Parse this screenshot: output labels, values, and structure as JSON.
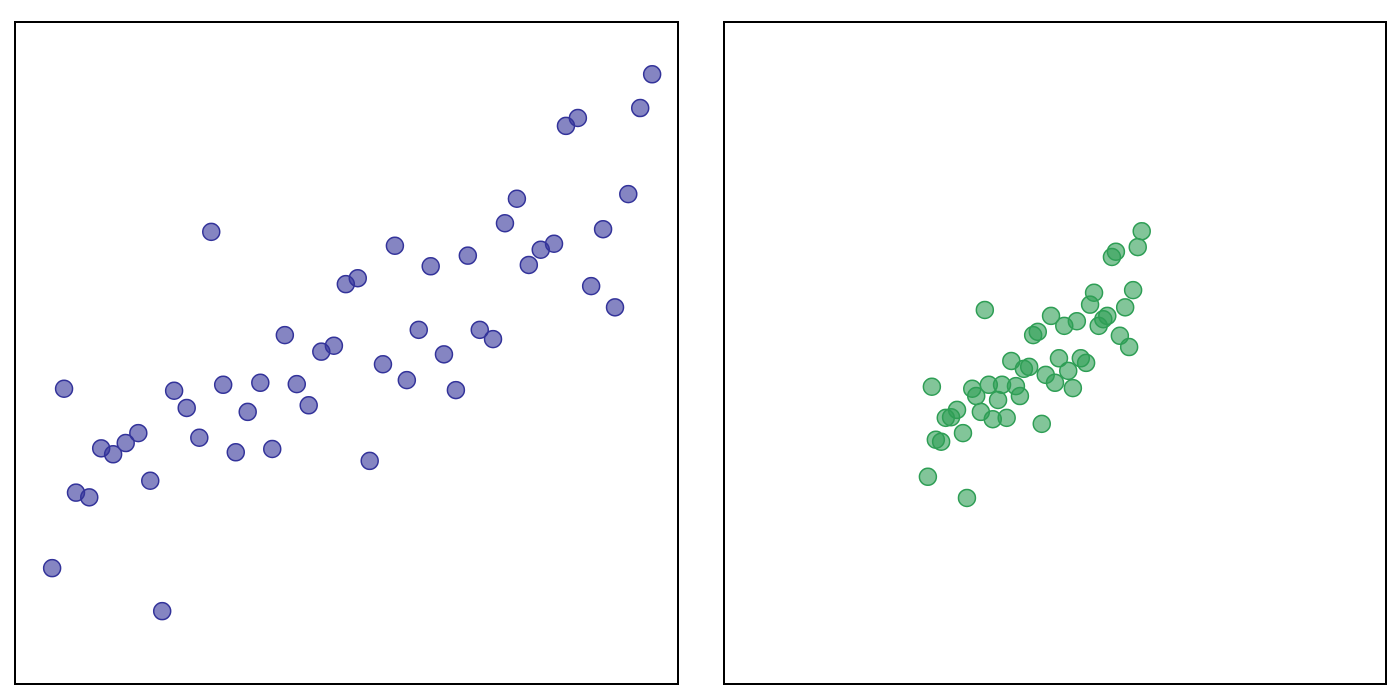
{
  "chart_data": [
    {
      "type": "scatter",
      "color": "#33339a",
      "xlim": [
        0,
        100
      ],
      "ylim": [
        0,
        100
      ],
      "x": [
        5.6,
        7.4,
        9.2,
        11.2,
        13.0,
        14.8,
        16.7,
        18.6,
        20.4,
        22.2,
        24.0,
        25.9,
        27.8,
        29.6,
        31.4,
        33.3,
        35.1,
        37.0,
        38.8,
        40.7,
        42.5,
        44.3,
        46.2,
        48.1,
        49.9,
        51.7,
        53.5,
        55.5,
        57.3,
        59.1,
        60.9,
        62.7,
        64.7,
        66.5,
        68.3,
        70.1,
        72.1,
        73.9,
        75.7,
        77.5,
        79.3,
        81.3,
        83.1,
        84.9,
        86.9,
        88.7,
        90.5,
        92.5,
        94.3,
        96.1
      ],
      "values": [
        17.5,
        44.6,
        28.9,
        28.2,
        35.6,
        34.7,
        36.4,
        37.9,
        30.7,
        11.0,
        44.3,
        41.7,
        37.2,
        68.3,
        45.2,
        35.0,
        41.1,
        45.5,
        35.5,
        52.7,
        45.3,
        42.1,
        50.2,
        51.1,
        60.4,
        61.3,
        33.7,
        48.3,
        66.2,
        45.9,
        53.5,
        63.1,
        49.8,
        44.4,
        64.7,
        53.5,
        52.1,
        69.6,
        73.3,
        63.3,
        65.6,
        66.5,
        84.3,
        85.5,
        60.1,
        68.7,
        56.9,
        74.0,
        87.0,
        92.1
      ]
    },
    {
      "type": "scatter",
      "color": "#2e9e55",
      "xlim": [
        0,
        100
      ],
      "ylim": [
        0,
        100
      ],
      "x": [
        30.8,
        31.4,
        32.0,
        32.8,
        33.5,
        34.3,
        35.2,
        36.1,
        36.7,
        37.5,
        38.1,
        38.8,
        39.4,
        40.0,
        40.6,
        41.4,
        42.0,
        42.7,
        43.4,
        44.1,
        44.7,
        45.3,
        46.1,
        46.7,
        47.4,
        48.0,
        48.6,
        49.4,
        50.0,
        50.6,
        51.4,
        52.0,
        52.7,
        53.3,
        53.9,
        54.7,
        55.3,
        55.9,
        56.6,
        57.3,
        57.9,
        58.6,
        59.2,
        59.8,
        60.6,
        61.2,
        61.8,
        62.5,
        63.1
      ],
      "values": [
        31.3,
        44.9,
        36.9,
        36.6,
        40.2,
        40.3,
        41.4,
        37.9,
        28.1,
        44.6,
        43.5,
        41.1,
        56.5,
        45.2,
        40.0,
        42.9,
        45.2,
        40.2,
        48.8,
        45.0,
        43.5,
        47.6,
        47.9,
        52.7,
        53.2,
        39.3,
        46.7,
        55.6,
        45.5,
        49.2,
        54.1,
        47.3,
        44.7,
        54.8,
        49.2,
        48.5,
        57.3,
        59.1,
        54.1,
        55.1,
        55.6,
        64.5,
        65.3,
        52.6,
        56.9,
        50.9,
        59.5,
        66.0,
        68.4
      ]
    }
  ]
}
